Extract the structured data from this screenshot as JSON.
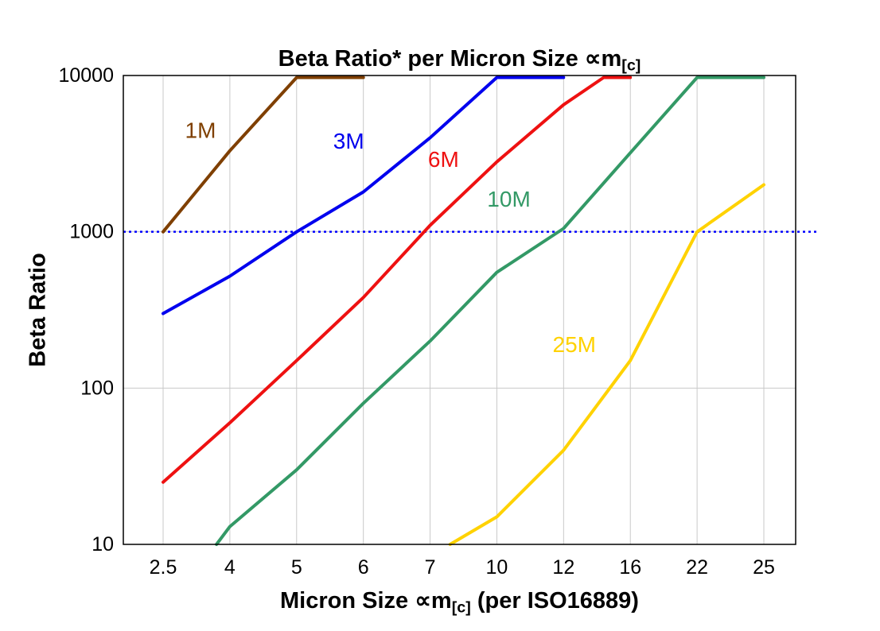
{
  "chart_data": {
    "type": "line",
    "title": {
      "main": "Beta Ratio* per Micron Size ∝m",
      "sub": "[c]"
    },
    "xlabel": {
      "main": "Micron Size ∝m",
      "sub": "[c]",
      "post": " (per ISO16889)"
    },
    "ylabel": "Beta Ratio",
    "x_categories": [
      "2.5",
      "4",
      "5",
      "6",
      "7",
      "10",
      "12",
      "16",
      "22",
      "25"
    ],
    "y_ticks": [
      10,
      100,
      1000,
      10000
    ],
    "ylim": [
      10,
      10000
    ],
    "y_scale": "log",
    "grid": true,
    "background": "#ffffff",
    "axis_color": "#000000",
    "gridline_color": "#c9c9c9",
    "reference_line": {
      "value": 1000,
      "color": "#0000ff",
      "style": "dotted"
    },
    "series": [
      {
        "name": "1M",
        "color": "#7f3f00",
        "label": {
          "xi": 0.56,
          "value": 4000
        },
        "points": [
          [
            0,
            1000
          ],
          [
            1,
            3300
          ],
          [
            2,
            10000
          ],
          [
            3,
            10000
          ]
        ]
      },
      {
        "name": "3M",
        "color": "#0000ee",
        "label": {
          "xi": 2.78,
          "value": 3400
        },
        "points": [
          [
            0,
            300
          ],
          [
            1,
            520
          ],
          [
            2,
            1000
          ],
          [
            3,
            1800
          ],
          [
            4,
            4000
          ],
          [
            5,
            10000
          ],
          [
            6,
            10000
          ]
        ]
      },
      {
        "name": "6M",
        "color": "#ee1111",
        "label": {
          "xi": 4.2,
          "value": 2600
        },
        "points": [
          [
            0,
            25
          ],
          [
            1,
            60
          ],
          [
            2,
            150
          ],
          [
            3,
            380
          ],
          [
            4,
            1100
          ],
          [
            5,
            2800
          ],
          [
            6,
            6500
          ],
          [
            6.6,
            10000
          ],
          [
            7,
            10000
          ]
        ]
      },
      {
        "name": "10M",
        "color": "#339966",
        "label": {
          "xi": 5.18,
          "value": 1450
        },
        "points": [
          [
            0.8,
            10
          ],
          [
            1,
            13
          ],
          [
            2,
            30
          ],
          [
            3,
            80
          ],
          [
            4,
            200
          ],
          [
            5,
            550
          ],
          [
            6,
            1050
          ],
          [
            7,
            3200
          ],
          [
            8,
            10000
          ],
          [
            9,
            10000
          ]
        ]
      },
      {
        "name": "25M",
        "color": "#ffd200",
        "label": {
          "xi": 6.16,
          "value": 170
        },
        "points": [
          [
            4.3,
            10
          ],
          [
            5,
            15
          ],
          [
            6,
            40
          ],
          [
            7,
            150
          ],
          [
            8,
            1000
          ],
          [
            9,
            2000
          ]
        ]
      }
    ]
  }
}
